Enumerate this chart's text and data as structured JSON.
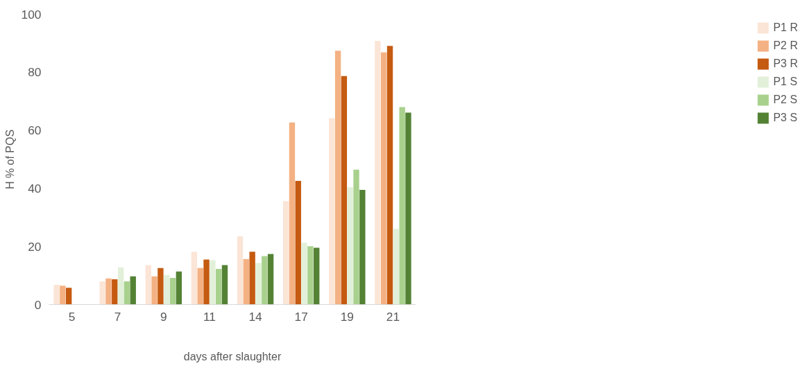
{
  "chart_data": {
    "type": "bar",
    "xlabel": "days after slaughter",
    "ylabel": "H % of PQS",
    "categories": [
      "5",
      "7",
      "9",
      "11",
      "14",
      "17",
      "19",
      "21"
    ],
    "series": [
      {
        "name": "P1 R",
        "color": "#fbe5d6",
        "values": [
          6.8,
          8.0,
          13.6,
          18.2,
          23.5,
          35.6,
          64.2,
          90.8
        ]
      },
      {
        "name": "P2 R",
        "color": "#f4b183",
        "values": [
          6.5,
          9.0,
          9.7,
          12.6,
          15.7,
          62.7,
          87.4,
          86.9
        ]
      },
      {
        "name": "P3 R",
        "color": "#c55a11",
        "values": [
          5.8,
          8.7,
          12.6,
          15.5,
          18.2,
          42.6,
          78.7,
          89.1
        ]
      },
      {
        "name": "P1 S",
        "color": "#e2f0d9",
        "values": [
          null,
          12.8,
          10.2,
          15.3,
          14.3,
          21.3,
          40.4,
          26.1
        ]
      },
      {
        "name": "P2 S",
        "color": "#a9d18e",
        "values": [
          null,
          8.0,
          9.2,
          12.3,
          16.7,
          20.1,
          46.5,
          68.0
        ]
      },
      {
        "name": "P3 S",
        "color": "#548235",
        "values": [
          null,
          9.7,
          11.4,
          13.6,
          17.4,
          19.6,
          39.5,
          66.1
        ]
      }
    ],
    "ylim": [
      0,
      100
    ],
    "yticks": [
      0,
      20,
      40,
      60,
      80,
      100
    ],
    "grid": false,
    "legend": "right"
  }
}
